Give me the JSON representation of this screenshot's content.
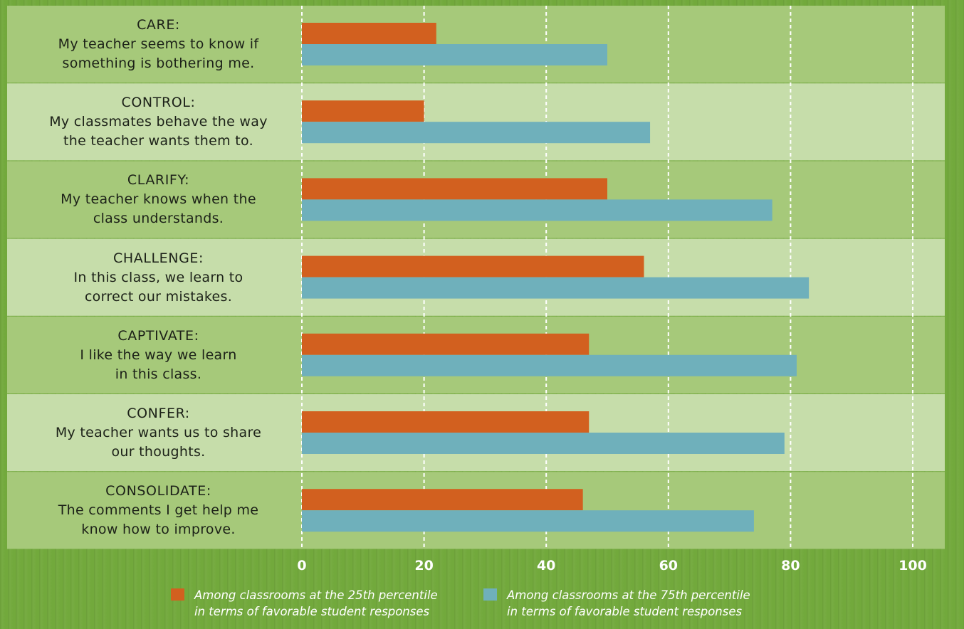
{
  "chart_data": {
    "type": "bar",
    "orientation": "horizontal",
    "categories": [
      {
        "title": "CARE:",
        "statement": "My teacher seems to know if something is bothering me."
      },
      {
        "title": "CONTROL:",
        "statement": "My classmates behave the way the teacher wants them to."
      },
      {
        "title": "CLARIFY:",
        "statement": "My teacher knows when the class understands."
      },
      {
        "title": "CHALLENGE:",
        "statement": "In this class, we learn to correct our mistakes."
      },
      {
        "title": "CAPTIVATE:",
        "statement": "I like the way we learn in this class."
      },
      {
        "title": "CONFER:",
        "statement": "My teacher wants us to share our thoughts."
      },
      {
        "title": "CONSOLIDATE:",
        "statement": "The comments I get help me know how to improve."
      }
    ],
    "category_lines": [
      [
        "CARE:",
        "My teacher seems to know if",
        "something is bothering me."
      ],
      [
        "CONTROL:",
        "My classmates behave the way",
        "the teacher wants them to."
      ],
      [
        "CLARIFY:",
        "My teacher knows when the",
        "class understands."
      ],
      [
        "CHALLENGE:",
        "In this class, we learn to",
        "correct our mistakes."
      ],
      [
        "CAPTIVATE:",
        "I like the way we learn",
        "in this class."
      ],
      [
        "CONFER:",
        "My teacher wants us to share",
        "our thoughts."
      ],
      [
        "CONSOLIDATE:",
        "The comments I get help me",
        "know how to improve."
      ]
    ],
    "series": [
      {
        "name": "Among classrooms at the 25th percentile\nin terms of favorable student responses",
        "color": "#d2601f",
        "values": [
          22,
          20,
          50,
          56,
          47,
          47,
          46
        ]
      },
      {
        "name": "Among classrooms at the 75th percentile\nin terms of favorable student responses",
        "color": "#6fb0bb",
        "values": [
          50,
          57,
          77,
          83,
          81,
          79,
          74
        ]
      }
    ],
    "xlim": [
      0,
      100
    ],
    "xticks": [
      "0",
      "20",
      "40",
      "60",
      "80",
      "100"
    ],
    "grid": "vertical-dashed",
    "legend_position": "bottom"
  }
}
